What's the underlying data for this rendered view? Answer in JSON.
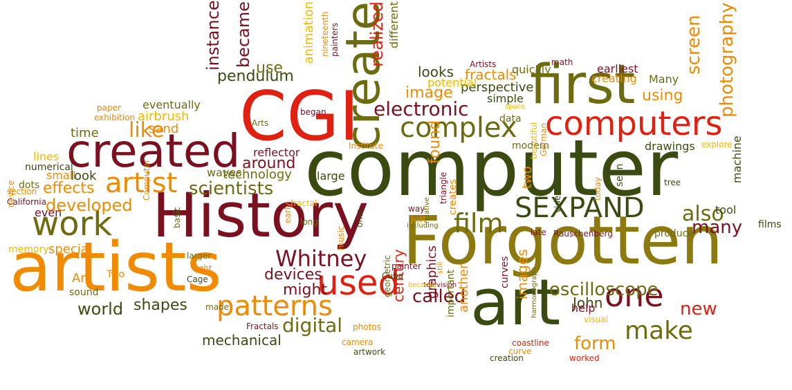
{
  "palette": {
    "dark_olive": "#3b4a10",
    "olive": "#6b6b10",
    "gold": "#8c7a10",
    "orange": "#f08a00",
    "amber": "#f4b800",
    "red": "#e02010",
    "maroon": "#7a1020",
    "dark_red": "#5a0a18"
  },
  "words": [
    "computer",
    "Forgotten",
    "History",
    "art",
    "artists",
    "CGI",
    "first",
    "created",
    "create",
    "computers",
    "complex",
    "SEXPAND",
    "work",
    "patterns",
    "used",
    "Whitney",
    "one",
    "electronic",
    "artist",
    "oscilloscope",
    "film",
    "make",
    "called",
    "digital",
    "photography",
    "scientists",
    "found",
    "like",
    "instance",
    "became",
    "realized",
    "also",
    "many",
    "screen",
    "new",
    "form",
    "image",
    "developed",
    "effects",
    "world",
    "shapes",
    "mechanical",
    "pendulum",
    "using",
    "devices",
    "might",
    "around",
    "technology",
    "animation",
    "use",
    "looks",
    "fractals",
    "perspective",
    "quickly",
    "earliest",
    "creating",
    "Many",
    "math",
    "Artists",
    "potential",
    "different",
    "simple",
    "data",
    "modern",
    "drawings",
    "reflector",
    "waves",
    "look",
    "small",
    "even",
    "time",
    "sand",
    "airbrush",
    "eventually",
    "paper",
    "exhibition",
    "Arts",
    "began",
    "nineteenth",
    "painters",
    "lines",
    "numerical",
    "dots",
    "section",
    "California",
    "device",
    "memory",
    "special",
    "Art",
    "Two",
    "sound",
    "Computer",
    "basic",
    "larger",
    "light",
    "Cage",
    "made",
    "Fractals",
    "photos",
    "camera",
    "artwork",
    "geometric",
    "century",
    "graphics",
    "important",
    "another",
    "images",
    "John",
    "help",
    "visual",
    "coastline",
    "curve",
    "creation",
    "worked",
    "harmonograph",
    "curves",
    "television",
    "become",
    "still",
    "painter",
    "Cuba",
    "music",
    "onto",
    "relative",
    "way",
    "Just",
    "early",
    "long",
    "fractal",
    "Sr",
    "Institute",
    "creates",
    "triangle",
    "two",
    "beautiful",
    "German",
    "video",
    "today",
    "seen",
    "tree",
    "explore",
    "machine",
    "tool",
    "films",
    "produce",
    "Rauschenberg",
    "late",
    "including",
    "space",
    "large"
  ]
}
